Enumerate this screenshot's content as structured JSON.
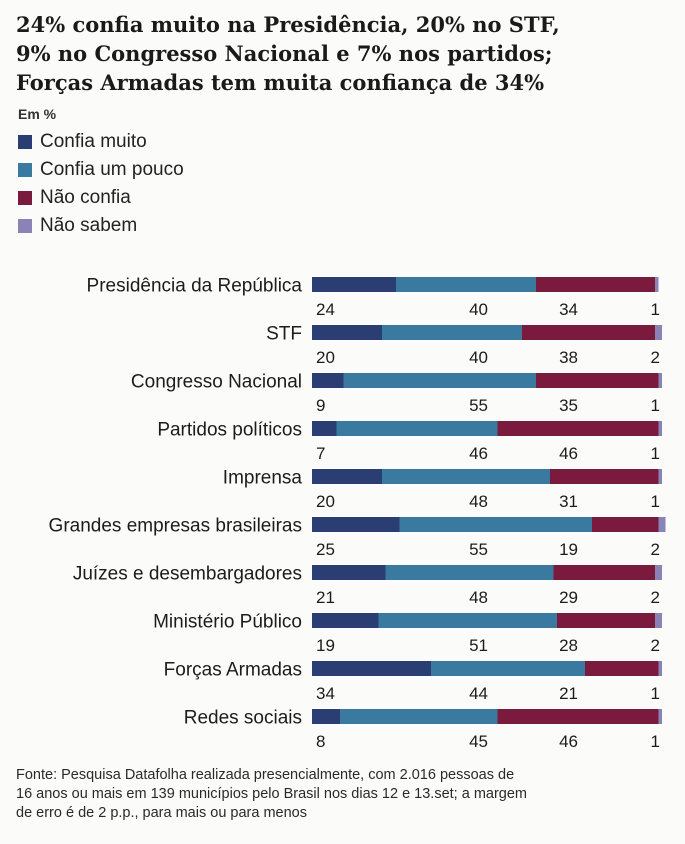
{
  "title_lines": [
    "24% confia muito na Presidência, 20% no STF,",
    "9% no Congresso Nacional e 7% nos partidos;",
    "Forças Armadas tem muita confiança de 34%"
  ],
  "unit": "Em %",
  "colors": {
    "confia_muito": "#2b3e73",
    "confia_um_pouco": "#3b7aa0",
    "nao_confia": "#7a1a3c",
    "nao_sabem": "#8a84b6"
  },
  "chart_data": {
    "type": "bar",
    "orientation": "horizontal",
    "stacked": true,
    "categories": [
      "Presidência da República",
      "STF",
      "Congresso Nacional",
      "Partidos políticos",
      "Imprensa",
      "Grandes empresas brasileiras",
      "Juízes e desembargadores",
      "Ministério Público",
      "Forças Armadas",
      "Redes sociais"
    ],
    "series": [
      {
        "name": "Confia muito",
        "values": [
          24,
          20,
          9,
          7,
          20,
          25,
          21,
          19,
          34,
          8
        ]
      },
      {
        "name": "Confia um pouco",
        "values": [
          40,
          40,
          55,
          46,
          48,
          55,
          48,
          51,
          44,
          45
        ]
      },
      {
        "name": "Não confia",
        "values": [
          34,
          38,
          35,
          46,
          31,
          19,
          29,
          28,
          21,
          46
        ]
      },
      {
        "name": "Não sabem",
        "values": [
          1,
          2,
          1,
          1,
          1,
          2,
          2,
          2,
          1,
          1
        ]
      }
    ],
    "xlim": [
      0,
      100
    ],
    "legend_position": "top-left",
    "grid": false
  },
  "footnote_lines": [
    "Fonte: Pesquisa Datafolha realizada presencialmente, com 2.016 pessoas de",
    "16 anos ou mais em 139 municípios pelo Brasil nos dias 12 e 13.set; a margem",
    "de erro é de 2 p.p., para mais ou para menos"
  ]
}
